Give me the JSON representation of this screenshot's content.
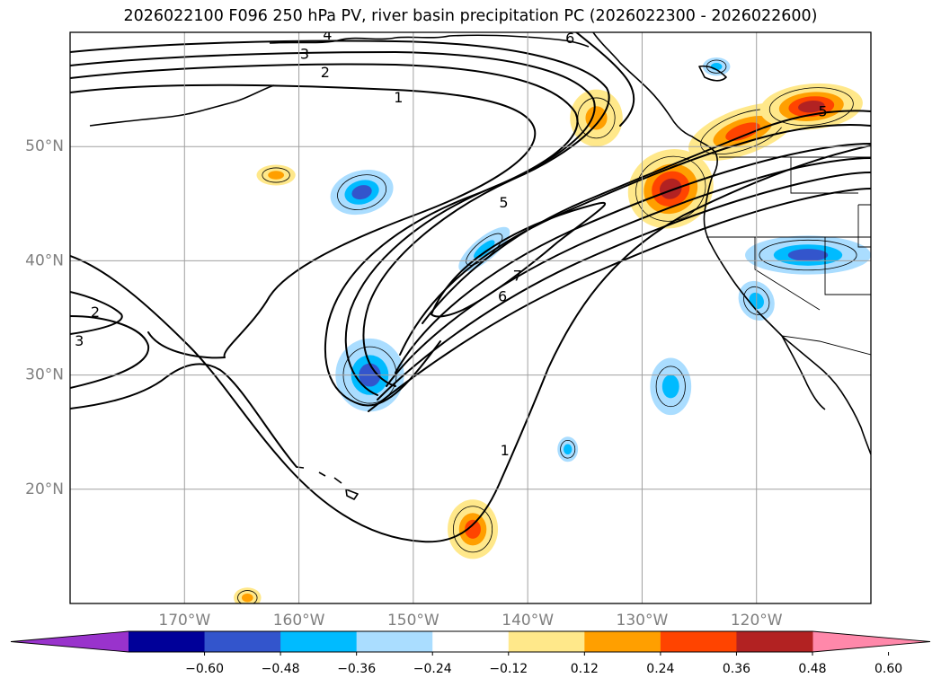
{
  "chart_data": {
    "type": "heatmap",
    "title": "2026022100 F096 250 hPa PV, river basin precipitation PC (2026022300 - 2026022600)",
    "projection": "lat-lon",
    "xlim": [
      -180,
      -110
    ],
    "ylim": [
      10,
      60
    ],
    "grid": true,
    "lat_ticks": [
      {
        "lat": 50,
        "label": "50°N"
      },
      {
        "lat": 40,
        "label": "40°N"
      },
      {
        "lat": 30,
        "label": "30°N"
      },
      {
        "lat": 20,
        "label": "20°N"
      }
    ],
    "lon_ticks": [
      {
        "lon": -170,
        "label": "170°W"
      },
      {
        "lon": -160,
        "label": "160°W"
      },
      {
        "lon": -150,
        "label": "150°W"
      },
      {
        "lon": -140,
        "label": "140°W"
      },
      {
        "lon": -130,
        "label": "130°W"
      },
      {
        "lon": -120,
        "label": "120°W"
      }
    ],
    "colorbar": {
      "extend": "both",
      "levels": [
        -0.6,
        -0.48,
        -0.36,
        -0.24,
        -0.12,
        0.12,
        0.24,
        0.36,
        0.48,
        0.6
      ],
      "tick_labels": [
        "−0.60",
        "−0.48",
        "−0.36",
        "−0.24",
        "−0.12",
        "0.12",
        "0.24",
        "0.36",
        "0.48",
        "0.60"
      ],
      "colors": [
        "#9933cc",
        "#000099",
        "#3355cc",
        "#00bbff",
        "#aaddff",
        "#ffffff",
        "#ffe88a",
        "#ff9f00",
        "#ff4400",
        "#b22222",
        "#ff88aa"
      ]
    },
    "pv_contour_labels": [
      {
        "lon": -157.5,
        "lat": 59.8,
        "text": "4"
      },
      {
        "lon": -159.5,
        "lat": 58.1,
        "text": "3"
      },
      {
        "lon": -157.7,
        "lat": 56.5,
        "text": "2"
      },
      {
        "lon": -151.3,
        "lat": 54.3,
        "text": "1"
      },
      {
        "lon": -136.3,
        "lat": 59.5,
        "text": "6"
      },
      {
        "lon": -114.2,
        "lat": 53.1,
        "text": "5"
      },
      {
        "lon": -142.1,
        "lat": 45.1,
        "text": "5"
      },
      {
        "lon": -140.9,
        "lat": 38.7,
        "text": "7"
      },
      {
        "lon": -142.2,
        "lat": 36.9,
        "text": "6"
      },
      {
        "lon": -177.8,
        "lat": 35.5,
        "text": "2"
      },
      {
        "lon": -179.2,
        "lat": 33.0,
        "text": "3"
      },
      {
        "lon": -142.0,
        "lat": 23.4,
        "text": "1"
      }
    ],
    "precip_anomalies": [
      {
        "lon": -127.5,
        "lat": 46.3,
        "rx": 3.8,
        "ry": 3.4,
        "rot": -25,
        "value": 0.5
      },
      {
        "lon": -121.2,
        "lat": 51.3,
        "rx": 5.0,
        "ry": 2.0,
        "rot": -20,
        "value": 0.45
      },
      {
        "lon": -115.2,
        "lat": 53.5,
        "rx": 4.5,
        "ry": 2.0,
        "rot": -5,
        "value": 0.55
      },
      {
        "lon": -134.0,
        "lat": 52.5,
        "rx": 2.3,
        "ry": 2.5,
        "rot": 0,
        "value": 0.3
      },
      {
        "lon": -144.8,
        "lat": 16.5,
        "rx": 2.2,
        "ry": 2.6,
        "rot": 0,
        "value": 0.42
      },
      {
        "lon": -162.0,
        "lat": 47.5,
        "rx": 1.7,
        "ry": 0.9,
        "rot": 0,
        "value": 0.28
      },
      {
        "lon": -164.5,
        "lat": 10.5,
        "rx": 1.2,
        "ry": 0.9,
        "rot": 0,
        "value": 0.28
      },
      {
        "lon": -153.8,
        "lat": 30.0,
        "rx": 3.0,
        "ry": 3.2,
        "rot": 0,
        "value": -0.4
      },
      {
        "lon": -154.5,
        "lat": 46.0,
        "rx": 2.8,
        "ry": 1.9,
        "rot": -15,
        "value": -0.4
      },
      {
        "lon": -143.8,
        "lat": 41.0,
        "rx": 2.8,
        "ry": 1.0,
        "rot": -40,
        "value": -0.3
      },
      {
        "lon": -127.5,
        "lat": 29.0,
        "rx": 1.8,
        "ry": 2.5,
        "rot": 0,
        "value": -0.3
      },
      {
        "lon": -123.5,
        "lat": 57.0,
        "rx": 1.2,
        "ry": 0.8,
        "rot": 0,
        "value": -0.3
      },
      {
        "lon": -136.5,
        "lat": 23.5,
        "rx": 0.9,
        "ry": 1.1,
        "rot": 0,
        "value": -0.3
      },
      {
        "lon": -115.5,
        "lat": 40.5,
        "rx": 5.5,
        "ry": 1.7,
        "rot": 0,
        "value": -0.42
      },
      {
        "lon": -120.0,
        "lat": 36.5,
        "rx": 1.5,
        "ry": 1.8,
        "rot": -30,
        "value": -0.3
      }
    ]
  }
}
